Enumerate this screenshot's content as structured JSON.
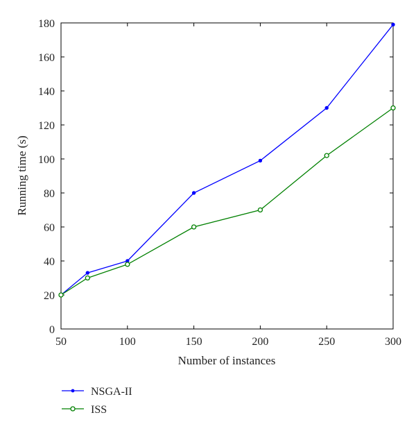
{
  "chart_data": {
    "type": "line",
    "x": [
      50,
      70,
      100,
      150,
      200,
      250,
      300
    ],
    "series": [
      {
        "name": "NSGA-II",
        "values": [
          20,
          33,
          40,
          80,
          99,
          130,
          179
        ],
        "color": "#0000ff",
        "marker": "filled-dot"
      },
      {
        "name": "ISS",
        "values": [
          20,
          30,
          38,
          60,
          70,
          102,
          130
        ],
        "color": "#008000",
        "marker": "open-circle"
      }
    ],
    "xlabel": "Number of instances",
    "ylabel": "Running time (s)",
    "xlim": [
      50,
      300
    ],
    "ylim": [
      0,
      180
    ],
    "xticks": [
      "50",
      "100",
      "150",
      "200",
      "250",
      "300"
    ],
    "yticks": [
      "0",
      "20",
      "40",
      "60",
      "80",
      "100",
      "120",
      "140",
      "160",
      "180"
    ],
    "grid": false,
    "legend_position": "bottom-left, below plot"
  }
}
